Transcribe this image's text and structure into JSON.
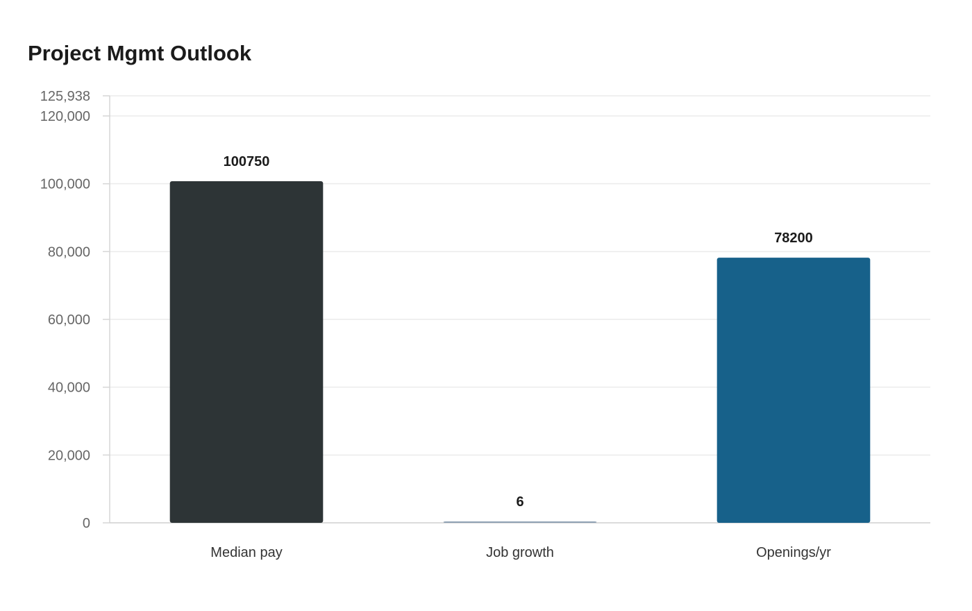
{
  "chart_data": {
    "type": "bar",
    "title": "Project Mgmt Outlook",
    "xlabel": "",
    "ylabel": "",
    "categories": [
      "Median pay",
      "Job growth",
      "Openings/yr"
    ],
    "values": [
      100750,
      6,
      78200
    ],
    "value_labels": [
      "100750",
      "6",
      "78200"
    ],
    "bar_colors": [
      "#2d3436",
      "#8fa1b3",
      "#17618a"
    ],
    "ylim": [
      0,
      125938
    ],
    "yticks": [
      0,
      20000,
      40000,
      60000,
      80000,
      100000,
      120000,
      125938
    ],
    "ytick_labels": [
      "0",
      "20,000",
      "40,000",
      "60,000",
      "80,000",
      "100,000",
      "120,000",
      "125,938"
    ],
    "grid": true,
    "legend": "none"
  }
}
